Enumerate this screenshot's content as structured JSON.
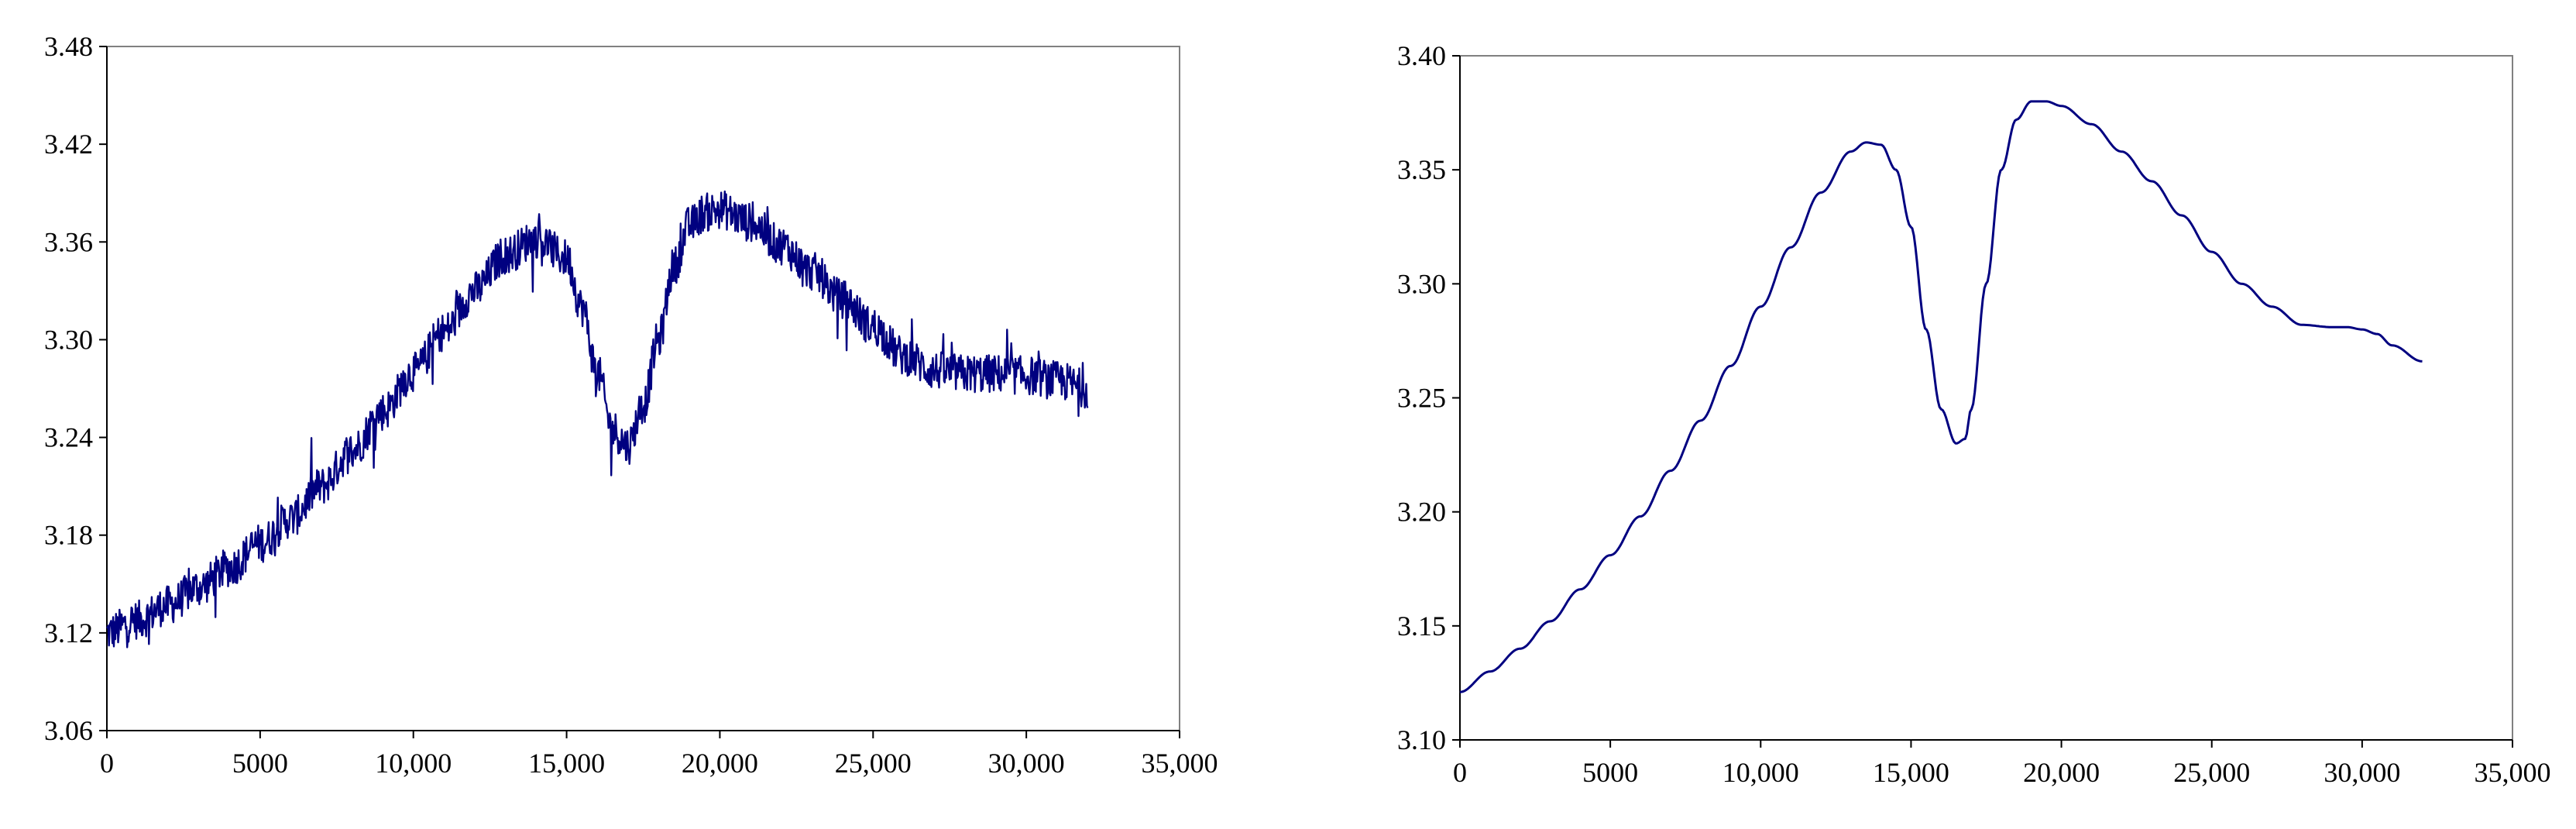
{
  "colors": {
    "series": "#000080",
    "frame": "#808080",
    "axis": "#000000"
  },
  "chart_data": [
    {
      "type": "line",
      "style": "noisy",
      "title": "",
      "xlabel": "",
      "ylabel": "",
      "xlim": [
        0,
        35000
      ],
      "ylim": [
        3.06,
        3.48
      ],
      "grid": false,
      "xticks": [
        0,
        5000,
        10000,
        15000,
        20000,
        25000,
        30000,
        35000
      ],
      "xtick_labels": [
        "0",
        "5000",
        "10,000",
        "15,000",
        "20,000",
        "25,000",
        "30,000",
        "35,000"
      ],
      "yticks": [
        3.06,
        3.12,
        3.18,
        3.24,
        3.3,
        3.36,
        3.42,
        3.48
      ],
      "ytick_labels": [
        "3.06",
        "3.12",
        "3.18",
        "3.24",
        "3.30",
        "3.36",
        "3.42",
        "3.48"
      ],
      "series": [
        {
          "x": [
            0,
            1000,
            2000,
            3000,
            4000,
            5000,
            6000,
            7000,
            8000,
            9000,
            10000,
            11000,
            12000,
            13000,
            14000,
            15000,
            15500,
            16000,
            16500,
            17000,
            17500,
            18000,
            18500,
            19000,
            19500,
            20000,
            21000,
            22000,
            23000,
            24000,
            25000,
            26000,
            27000,
            28000,
            29000,
            30000,
            31000,
            32000
          ],
          "values": [
            3.12,
            3.128,
            3.137,
            3.148,
            3.16,
            3.175,
            3.19,
            3.21,
            3.232,
            3.256,
            3.28,
            3.305,
            3.33,
            3.352,
            3.362,
            3.35,
            3.32,
            3.28,
            3.245,
            3.235,
            3.26,
            3.3,
            3.345,
            3.37,
            3.378,
            3.38,
            3.372,
            3.358,
            3.342,
            3.325,
            3.308,
            3.29,
            3.281,
            3.279,
            3.279,
            3.278,
            3.275,
            3.27
          ],
          "noise_amplitude": 0.012
        }
      ]
    },
    {
      "type": "line",
      "style": "smooth",
      "title": "",
      "xlabel": "",
      "ylabel": "",
      "xlim": [
        0,
        35000
      ],
      "ylim": [
        3.1,
        3.4
      ],
      "grid": false,
      "xticks": [
        0,
        5000,
        10000,
        15000,
        20000,
        25000,
        30000,
        35000
      ],
      "xtick_labels": [
        "0",
        "5000",
        "10,000",
        "15,000",
        "20,000",
        "25,000",
        "30,000",
        "35,000"
      ],
      "yticks": [
        3.1,
        3.15,
        3.2,
        3.25,
        3.3,
        3.35,
        3.4
      ],
      "ytick_labels": [
        "3.10",
        "3.15",
        "3.20",
        "3.25",
        "3.30",
        "3.35",
        "3.40"
      ],
      "series": [
        {
          "x": [
            0,
            1000,
            2000,
            3000,
            4000,
            5000,
            6000,
            7000,
            8000,
            9000,
            10000,
            11000,
            12000,
            13000,
            13500,
            14000,
            14500,
            15000,
            15500,
            16000,
            16500,
            16800,
            17000,
            17500,
            18000,
            18500,
            19000,
            19500,
            20000,
            21000,
            22000,
            23000,
            24000,
            25000,
            26000,
            27000,
            28000,
            29000,
            29500,
            30000,
            30500,
            31000,
            32000
          ],
          "values": [
            3.121,
            3.13,
            3.14,
            3.152,
            3.166,
            3.181,
            3.198,
            3.218,
            3.24,
            3.264,
            3.29,
            3.316,
            3.34,
            3.358,
            3.362,
            3.361,
            3.35,
            3.325,
            3.28,
            3.245,
            3.23,
            3.232,
            3.245,
            3.3,
            3.35,
            3.372,
            3.38,
            3.38,
            3.378,
            3.37,
            3.358,
            3.345,
            3.33,
            3.314,
            3.3,
            3.29,
            3.282,
            3.281,
            3.281,
            3.28,
            3.278,
            3.273,
            3.266
          ]
        }
      ]
    }
  ]
}
